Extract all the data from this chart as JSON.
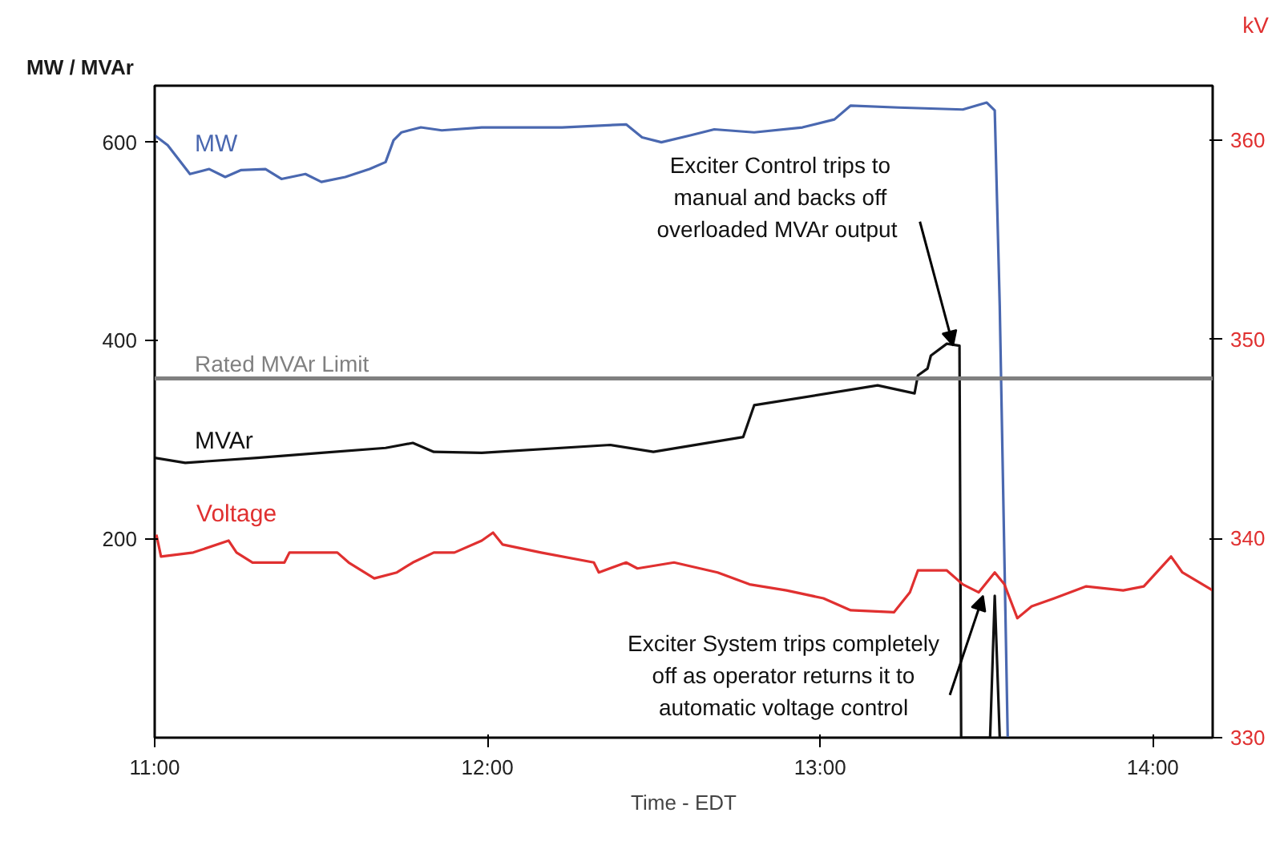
{
  "chart_data": {
    "type": "line",
    "ylabel": "MW / MVAr",
    "y2label": "kV",
    "xlabel": "Time - EDT",
    "xlim": [
      11,
      14.18
    ],
    "ylim": [
      0,
      657
    ],
    "y2lim": [
      330,
      362.75
    ],
    "xticks": [
      {
        "value": 11,
        "label": "11:00"
      },
      {
        "value": 12,
        "label": "12:00"
      },
      {
        "value": 13,
        "label": "13:00"
      },
      {
        "value": 14,
        "label": "14:00"
      }
    ],
    "yticks": [
      200,
      400,
      600
    ],
    "y2ticks": [
      330,
      340,
      350,
      360
    ],
    "grid": false,
    "legend": false,
    "line_style": "solid",
    "marker": "none",
    "series": [
      {
        "name": "MW",
        "color": "#4a68b0",
        "x": [
          11.0,
          11.039,
          11.106,
          11.164,
          11.212,
          11.26,
          11.333,
          11.381,
          11.453,
          11.501,
          11.573,
          11.646,
          11.694,
          11.718,
          11.742,
          11.8,
          11.863,
          11.983,
          12.224,
          12.417,
          12.465,
          12.523,
          12.61,
          12.682,
          12.802,
          12.947,
          13.043,
          13.092,
          13.236,
          13.429,
          13.501,
          13.525,
          13.54,
          13.564
        ],
        "values": [
          607,
          597,
          568,
          573,
          565,
          572,
          573,
          563,
          568,
          560,
          565,
          573,
          580,
          602,
          610,
          615,
          612,
          615,
          615,
          618,
          605,
          600,
          607,
          613,
          610,
          615,
          623,
          637,
          635,
          633,
          640,
          632,
          435,
          0
        ]
      },
      {
        "name": "MVAr",
        "color": "#111111",
        "x": [
          11.0,
          11.092,
          11.308,
          11.501,
          11.694,
          11.776,
          11.839,
          11.983,
          12.369,
          12.499,
          12.769,
          12.802,
          13.173,
          13.284,
          13.294,
          13.323,
          13.333,
          13.381,
          13.419,
          13.424,
          13.511,
          13.525,
          13.54
        ],
        "values": [
          282,
          277,
          282,
          287,
          292,
          297,
          288,
          287,
          295,
          288,
          303,
          335,
          355,
          347,
          365,
          372,
          385,
          397,
          395,
          0,
          0,
          143,
          0
        ]
      },
      {
        "name": "Voltage",
        "color": "#e03030",
        "axis": "y2",
        "x": [
          11.005,
          11.019,
          11.116,
          11.222,
          11.246,
          11.294,
          11.39,
          11.405,
          11.549,
          11.583,
          11.66,
          11.728,
          11.776,
          11.839,
          11.901,
          11.983,
          12.017,
          12.046,
          12.161,
          12.32,
          12.335,
          12.417,
          12.451,
          12.561,
          12.692,
          12.788,
          12.899,
          13.01,
          13.092,
          13.222,
          13.27,
          13.294,
          13.381,
          13.429,
          13.477,
          13.525,
          13.554,
          13.593,
          13.636,
          13.704,
          13.8,
          13.911,
          13.973,
          14.055,
          14.089,
          14.18
        ],
        "values": [
          340.2,
          339.1,
          339.3,
          339.9,
          339.3,
          338.8,
          338.8,
          339.3,
          339.3,
          338.8,
          338.0,
          338.3,
          338.8,
          339.3,
          339.3,
          339.9,
          340.3,
          339.7,
          339.3,
          338.8,
          338.3,
          338.8,
          338.5,
          338.8,
          338.3,
          337.7,
          337.4,
          337.0,
          336.4,
          336.3,
          337.3,
          338.4,
          338.4,
          337.7,
          337.3,
          338.3,
          337.7,
          336.0,
          336.6,
          337.0,
          337.6,
          337.4,
          337.6,
          339.1,
          338.3,
          337.4
        ]
      }
    ],
    "ref_lines": [
      {
        "axis": "y",
        "value": 362,
        "label": "Rated MVAr Limit",
        "color": "#808080"
      }
    ],
    "annotations": [
      {
        "text": "Exciter Control trips to\nmanual and backs off\noverloaded  MVAr output",
        "x": 13.4,
        "y": 395
      },
      {
        "text": "Exciter System trips completely\noff as operator returns it to\nautomatic voltage control",
        "x": 13.49,
        "y": 143
      }
    ]
  }
}
